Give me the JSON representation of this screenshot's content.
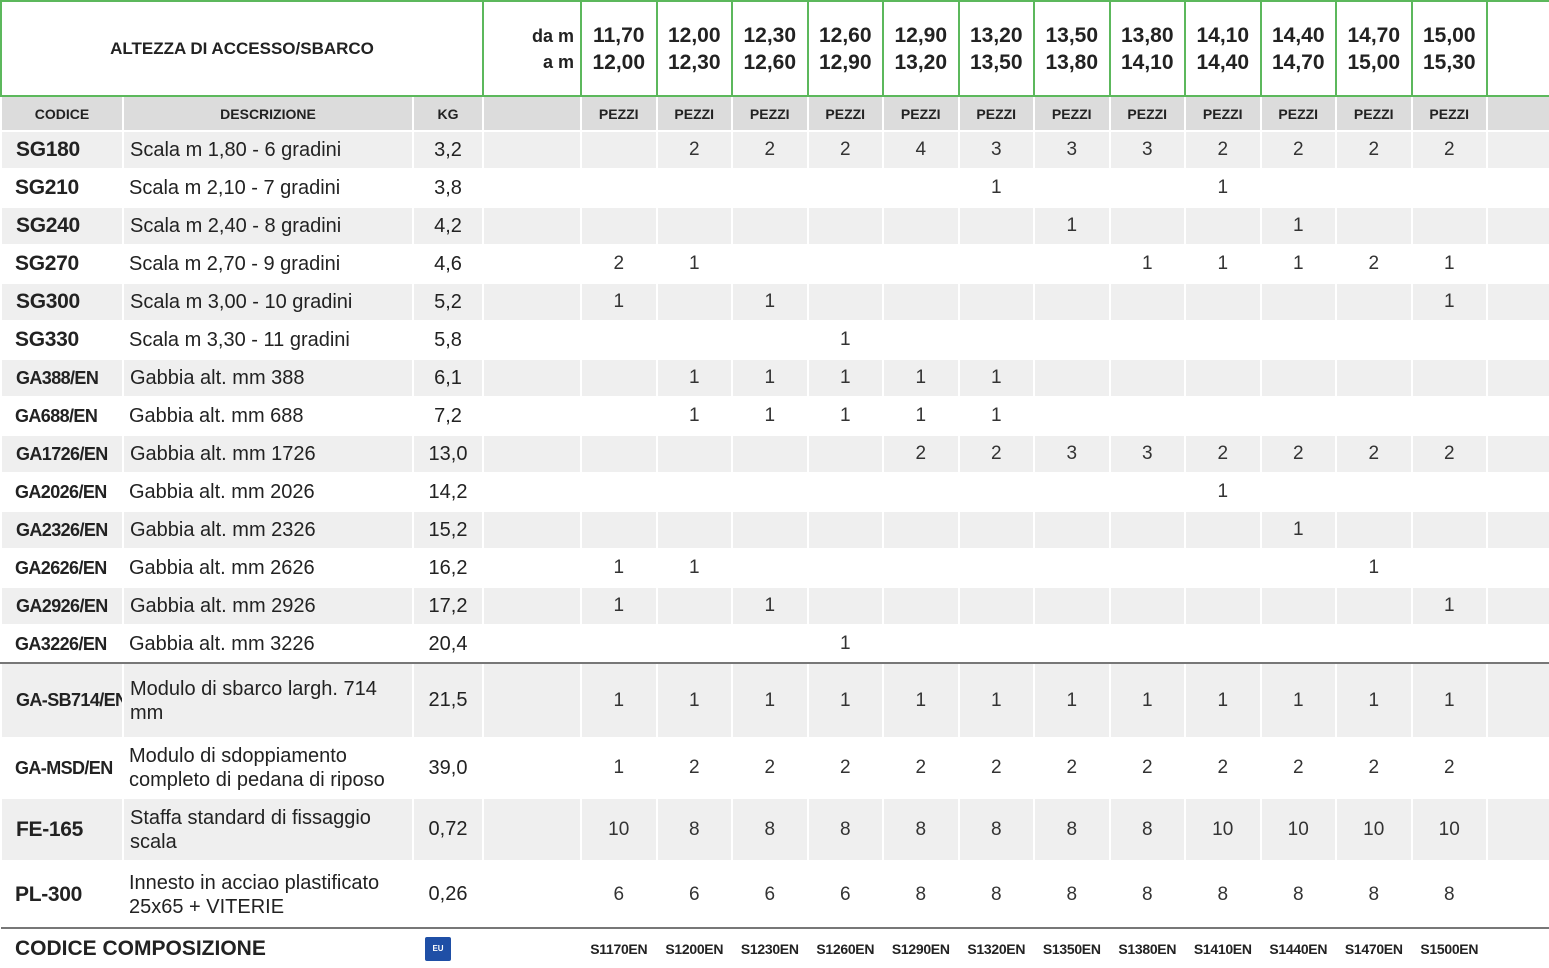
{
  "header": {
    "title": "ALTEZZA DI ACCESSO/SBARCO",
    "from_label": "da m",
    "to_label": "a m",
    "ranges": [
      {
        "from": "11,70",
        "to": "12,00"
      },
      {
        "from": "12,00",
        "to": "12,30"
      },
      {
        "from": "12,30",
        "to": "12,60"
      },
      {
        "from": "12,60",
        "to": "12,90"
      },
      {
        "from": "12,90",
        "to": "13,20"
      },
      {
        "from": "13,20",
        "to": "13,50"
      },
      {
        "from": "13,50",
        "to": "13,80"
      },
      {
        "from": "13,80",
        "to": "14,10"
      },
      {
        "from": "14,10",
        "to": "14,40"
      },
      {
        "from": "14,40",
        "to": "14,70"
      },
      {
        "from": "14,70",
        "to": "15,00"
      },
      {
        "from": "15,00",
        "to": "15,30"
      }
    ]
  },
  "columns": {
    "code": "CODICE",
    "description": "DESCRIZIONE",
    "kg": "KG",
    "pieces": "PEZZI"
  },
  "rows": [
    {
      "code": "SG180",
      "description": "Scala m 1,80 - 6 gradini",
      "kg": "3,2",
      "qty": [
        null,
        2,
        2,
        2,
        4,
        3,
        3,
        3,
        2,
        2,
        2,
        2
      ]
    },
    {
      "code": "SG210",
      "description": "Scala m 2,10 - 7 gradini",
      "kg": "3,8",
      "qty": [
        null,
        null,
        null,
        null,
        null,
        1,
        null,
        null,
        1,
        null,
        null,
        null
      ]
    },
    {
      "code": "SG240",
      "description": "Scala m 2,40 - 8 gradini",
      "kg": "4,2",
      "qty": [
        null,
        null,
        null,
        null,
        null,
        null,
        1,
        null,
        null,
        1,
        null,
        null
      ]
    },
    {
      "code": "SG270",
      "description": "Scala m 2,70 - 9 gradini",
      "kg": "4,6",
      "qty": [
        2,
        1,
        null,
        null,
        null,
        null,
        null,
        1,
        1,
        1,
        2,
        1
      ]
    },
    {
      "code": "SG300",
      "description": "Scala m 3,00 - 10 gradini",
      "kg": "5,2",
      "qty": [
        1,
        null,
        1,
        null,
        null,
        null,
        null,
        null,
        null,
        null,
        null,
        1
      ]
    },
    {
      "code": "SG330",
      "description": "Scala m 3,30 - 11 gradini",
      "kg": "5,8",
      "qty": [
        null,
        null,
        null,
        1,
        null,
        null,
        null,
        null,
        null,
        null,
        null,
        null
      ]
    },
    {
      "code": "GA388/EN",
      "description": "Gabbia alt. mm 388",
      "kg": "6,1",
      "qty": [
        null,
        1,
        1,
        1,
        1,
        1,
        null,
        null,
        null,
        null,
        null,
        null
      ]
    },
    {
      "code": "GA688/EN",
      "description": "Gabbia alt. mm 688",
      "kg": "7,2",
      "qty": [
        null,
        1,
        1,
        1,
        1,
        1,
        null,
        null,
        null,
        null,
        null,
        null
      ]
    },
    {
      "code": "GA1726/EN",
      "description": "Gabbia alt. mm 1726",
      "kg": "13,0",
      "qty": [
        null,
        null,
        null,
        null,
        2,
        2,
        3,
        3,
        2,
        2,
        2,
        2
      ]
    },
    {
      "code": "GA2026/EN",
      "description": "Gabbia alt. mm 2026",
      "kg": "14,2",
      "qty": [
        null,
        null,
        null,
        null,
        null,
        null,
        null,
        null,
        1,
        null,
        null,
        null
      ]
    },
    {
      "code": "GA2326/EN",
      "description": "Gabbia alt. mm 2326",
      "kg": "15,2",
      "qty": [
        null,
        null,
        null,
        null,
        null,
        null,
        null,
        null,
        null,
        1,
        null,
        null
      ]
    },
    {
      "code": "GA2626/EN",
      "description": "Gabbia alt. mm 2626",
      "kg": "16,2",
      "qty": [
        1,
        1,
        null,
        null,
        null,
        null,
        null,
        null,
        null,
        null,
        1,
        null
      ]
    },
    {
      "code": "GA2926/EN",
      "description": "Gabbia alt. mm 2926",
      "kg": "17,2",
      "qty": [
        1,
        null,
        1,
        null,
        null,
        null,
        null,
        null,
        null,
        null,
        null,
        1
      ]
    },
    {
      "code": "GA3226/EN",
      "description": "Gabbia alt. mm 3226",
      "kg": "20,4",
      "qty": [
        null,
        null,
        null,
        1,
        null,
        null,
        null,
        null,
        null,
        null,
        null,
        null
      ]
    },
    {
      "code": "GA-SB714/EN",
      "description": "Modulo di sbarco largh. 714 mm",
      "kg": "21,5",
      "qty": [
        1,
        1,
        1,
        1,
        1,
        1,
        1,
        1,
        1,
        1,
        1,
        1
      ]
    },
    {
      "code": "GA-MSD/EN",
      "description": "Modulo di sdoppiamento completo di pedana di riposo",
      "kg": "39,0",
      "qty": [
        1,
        2,
        2,
        2,
        2,
        2,
        2,
        2,
        2,
        2,
        2,
        2
      ]
    },
    {
      "code": "FE-165",
      "description": "Staffa standard  di fissaggio scala",
      "kg": "0,72",
      "qty": [
        10,
        8,
        8,
        8,
        8,
        8,
        8,
        8,
        10,
        10,
        10,
        10
      ]
    },
    {
      "code": "PL-300",
      "description": "Innesto in acciao plastificato 25x65 + VITERIE",
      "kg": "0,26",
      "qty": [
        6,
        6,
        6,
        6,
        8,
        8,
        8,
        8,
        8,
        8,
        8,
        8
      ]
    }
  ],
  "footer": {
    "label": "CODICE COMPOSIZIONE",
    "badge": "EU",
    "codes": [
      "S1170EN",
      "S1200EN",
      "S1230EN",
      "S1260EN",
      "S1290EN",
      "S1320EN",
      "S1350EN",
      "S1380EN",
      "S1410EN",
      "S1440EN",
      "S1470EN",
      "S1500EN"
    ]
  }
}
